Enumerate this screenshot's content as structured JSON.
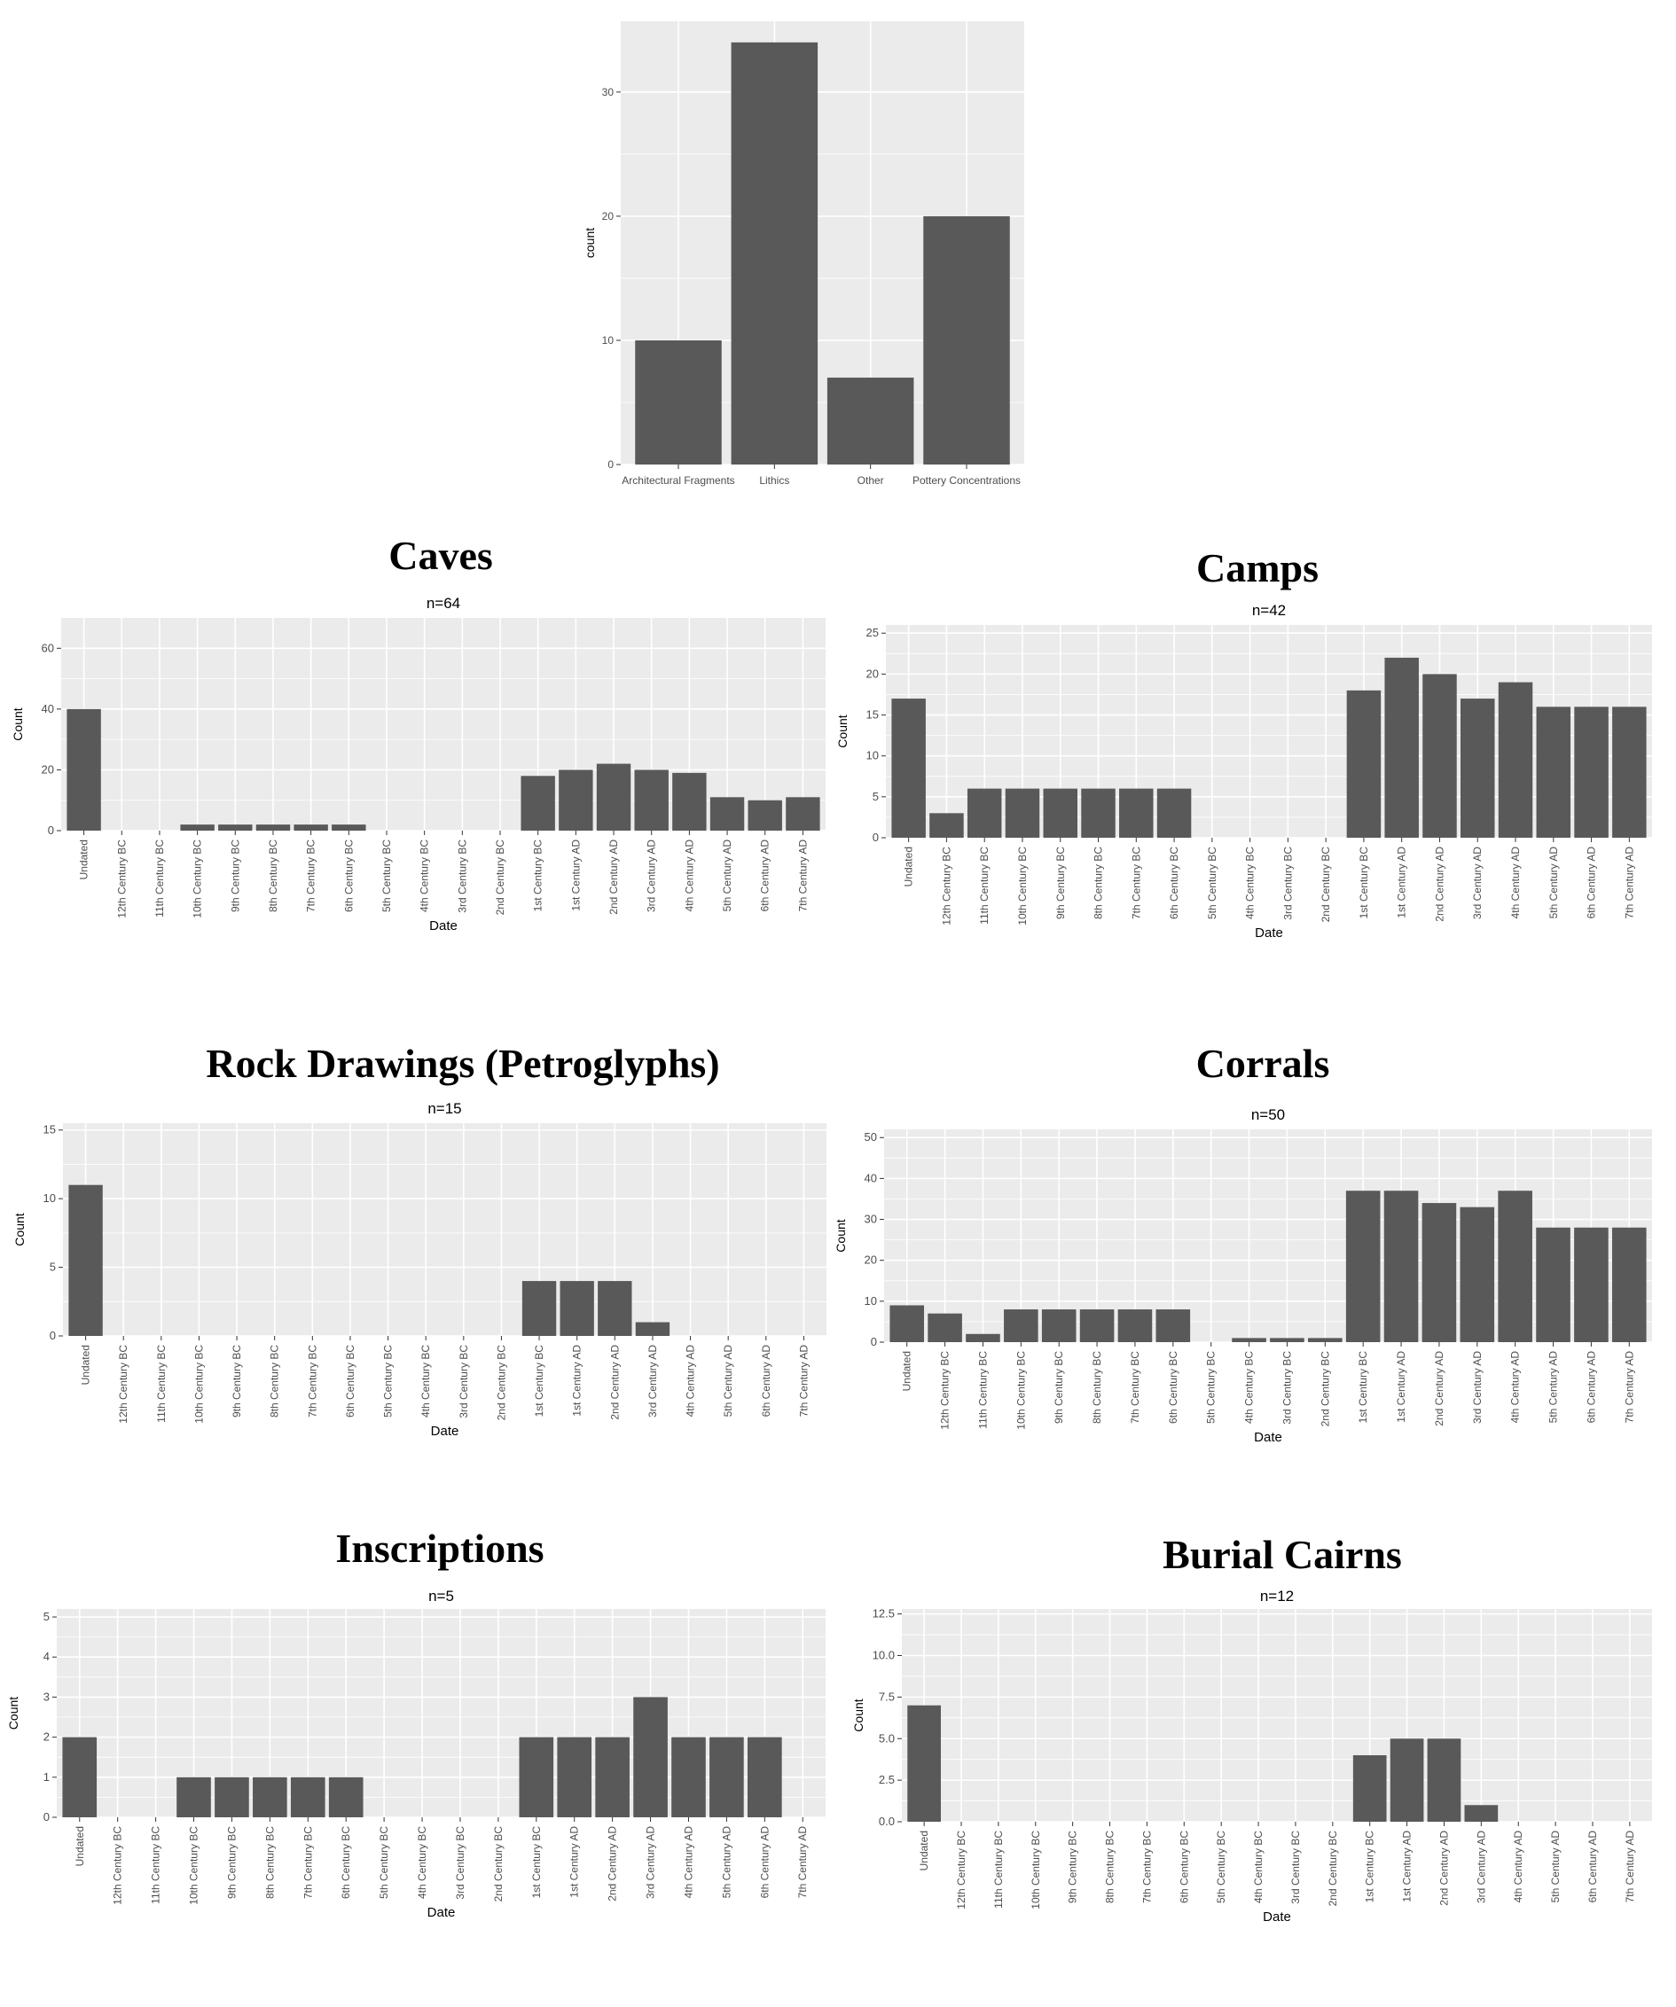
{
  "dates": [
    "Undated",
    "12th Century BC",
    "11th Century BC",
    "10th Century BC",
    "9th Century BC",
    "8th Century BC",
    "7th Century BC",
    "6th Century BC",
    "5th Century BC",
    "4th Century BC",
    "3rd Century BC",
    "2nd Century BC",
    "1st Century BC",
    "1st Century AD",
    "2nd Century AD",
    "3rd Century AD",
    "4th Century AD",
    "5th Century AD",
    "6th Century AD",
    "7th Century AD"
  ],
  "chart_data": [
    {
      "id": "overview",
      "type": "bar",
      "heading": "",
      "title": "",
      "xlabel": "",
      "ylabel": "count",
      "categories": [
        "Architectural Fragments",
        "Lithics",
        "Other",
        "Pottery Concentrations"
      ],
      "values": [
        10,
        34,
        7,
        20
      ],
      "ylim": [
        0,
        35.7
      ],
      "yticks": [
        0,
        10,
        20,
        30
      ],
      "ytick_labels": [
        "0",
        "10",
        "20",
        "30"
      ],
      "grid": true,
      "rotate_x": false
    },
    {
      "id": "caves",
      "type": "bar",
      "heading": "Caves",
      "title": "n=64",
      "xlabel": "Date",
      "ylabel": "Count",
      "values": [
        40,
        0,
        0,
        2,
        2,
        2,
        2,
        2,
        0,
        0,
        0,
        0,
        18,
        20,
        22,
        20,
        19,
        11,
        10,
        11
      ],
      "ylim": [
        0,
        70
      ],
      "yticks": [
        0,
        20,
        40,
        60
      ],
      "ytick_labels": [
        "0",
        "20",
        "40",
        "60"
      ],
      "grid": true,
      "rotate_x": true
    },
    {
      "id": "camps",
      "type": "bar",
      "heading": "Camps",
      "title": "n=42",
      "xlabel": "Date",
      "ylabel": "Count",
      "values": [
        17,
        3,
        6,
        6,
        6,
        6,
        6,
        6,
        0,
        0,
        0,
        0,
        18,
        22,
        20,
        17,
        19,
        16,
        16,
        16
      ],
      "ylim": [
        0,
        26
      ],
      "yticks": [
        0,
        5,
        10,
        15,
        20,
        25
      ],
      "ytick_labels": [
        "0",
        "5",
        "10",
        "15",
        "20",
        "25"
      ],
      "grid": true,
      "rotate_x": true
    },
    {
      "id": "rock-drawings",
      "type": "bar",
      "heading": "Rock Drawings (Petroglyphs)",
      "title": "n=15",
      "xlabel": "Date",
      "ylabel": "Count",
      "values": [
        11,
        0,
        0,
        0,
        0,
        0,
        0,
        0,
        0,
        0,
        0,
        0,
        4,
        4,
        4,
        1,
        0,
        0,
        0,
        0
      ],
      "ylim": [
        0,
        15.5
      ],
      "yticks": [
        0,
        5,
        10,
        15
      ],
      "ytick_labels": [
        "0",
        "5",
        "10",
        "15"
      ],
      "grid": true,
      "rotate_x": true
    },
    {
      "id": "corrals",
      "type": "bar",
      "heading": "Corrals",
      "title": "n=50",
      "xlabel": "Date",
      "ylabel": "Count",
      "values": [
        9,
        7,
        2,
        8,
        8,
        8,
        8,
        8,
        0,
        1,
        1,
        1,
        37,
        37,
        34,
        33,
        37,
        28,
        28,
        28
      ],
      "ylim": [
        0,
        52
      ],
      "yticks": [
        0,
        10,
        20,
        30,
        40,
        50
      ],
      "ytick_labels": [
        "0",
        "10",
        "20",
        "30",
        "40",
        "50"
      ],
      "grid": true,
      "rotate_x": true
    },
    {
      "id": "inscriptions",
      "type": "bar",
      "heading": "Inscriptions",
      "title": "n=5",
      "xlabel": "Date",
      "ylabel": "Count",
      "values": [
        2,
        0,
        0,
        1,
        1,
        1,
        1,
        1,
        0,
        0,
        0,
        0,
        2,
        2,
        2,
        3,
        2,
        2,
        2,
        0
      ],
      "categories_override": [
        "Undated",
        "12th Century BC",
        "11th Century BC",
        "10th Century BC",
        "9th Century BC",
        "8th Century BC",
        "7th Century BC",
        "6th Century BC",
        "5th Century BC",
        "4th Century BC",
        "3rd Century BC",
        "2nd Century BC",
        "1st Century BC",
        "1st Century AD",
        "2nd Century AD",
        "3rd Century AD",
        "4th Century AD",
        "5th Century AD",
        "6th Century AD",
        "7th Century AD"
      ],
      "ylim": [
        0,
        5.2
      ],
      "yticks": [
        0,
        1,
        2,
        3,
        4,
        5
      ],
      "ytick_labels": [
        "0",
        "1",
        "2",
        "3",
        "4",
        "5"
      ],
      "grid": true,
      "rotate_x": true
    },
    {
      "id": "burial-cairns",
      "type": "bar",
      "heading": "Burial Cairns",
      "title": "n=12",
      "xlabel": "Date",
      "ylabel": "Count",
      "values": [
        7,
        0,
        0,
        0,
        0,
        0,
        0,
        0,
        0,
        0,
        0,
        0,
        4,
        5,
        5,
        1,
        0,
        0,
        0,
        0
      ],
      "ylim": [
        0,
        12.8
      ],
      "yticks": [
        0,
        2.5,
        5,
        7.5,
        10,
        12.5
      ],
      "ytick_labels": [
        "0.0",
        "2.5",
        "5.0",
        "7.5",
        "10.0",
        "12.5"
      ],
      "grid": true,
      "rotate_x": true
    }
  ],
  "style": {
    "panel_bg": "#ebebeb",
    "grid_color": "#ffffff",
    "bar_color": "#595959",
    "text_color": "#4d4d4d"
  }
}
